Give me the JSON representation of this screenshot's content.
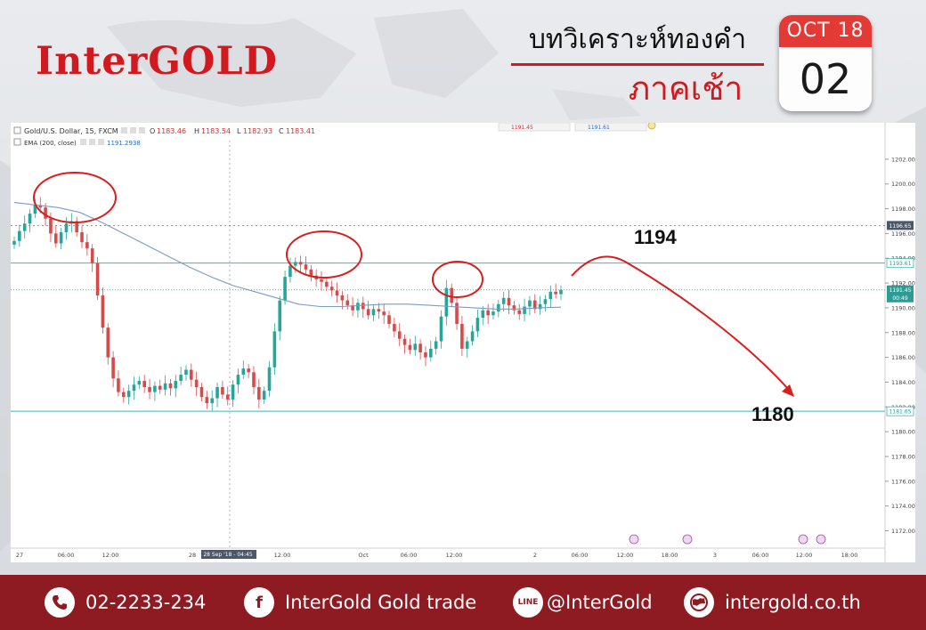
{
  "header": {
    "logo": "InterGOLD",
    "title_th": "บทวิเคราะห์ทองคำ",
    "subtitle_th": "ภาคเช้า",
    "calendar_month": "OCT 18",
    "calendar_day": "02"
  },
  "chart_header": {
    "symbol": "Gold/U.S. Dollar, 15, FXCM",
    "ohlc_o_label": "O",
    "ohlc_o": "1183.46",
    "ohlc_h_label": "H",
    "ohlc_h": "1183.54",
    "ohlc_l_label": "L",
    "ohlc_l": "1182.93",
    "ohlc_c_label": "C",
    "ohlc_c": "1183.41",
    "ema_label": "EMA (200, close)",
    "ema_value": "1191.2938",
    "tab_left": "1191.45",
    "tab_right": "1191.61"
  },
  "chart_data": {
    "type": "line",
    "title": "",
    "xlabel": "",
    "ylabel": "",
    "ylim": [
      1170.6,
      1203.5
    ],
    "yticks": [
      "1202.00",
      "1200.00",
      "1198.00",
      "1196.00",
      "1194.00",
      "1192.00",
      "1190.00",
      "1188.00",
      "1186.00",
      "1184.00",
      "1182.00",
      "1180.00",
      "1178.00",
      "1176.00",
      "1174.00",
      "1172.00"
    ],
    "xticks": [
      "27",
      "06:00",
      "12:00",
      "28",
      "28 Sep '18 - 04:45",
      "12:00",
      "Oct",
      "06:00",
      "12:00",
      "2",
      "06:00",
      "12:00",
      "18:00",
      "3",
      "06:00",
      "12:00",
      "18:00"
    ],
    "price_labels": [
      "1196.65",
      "1193.61",
      "1191.45",
      "00:49",
      "1181.65"
    ],
    "horizontal_lines": [
      1193.61,
      1191.45,
      1181.65
    ],
    "dashed_line": 1196.65,
    "series": [
      {
        "values": [
          1195.4,
          1196.2,
          1196.8,
          1197.6,
          1198.3,
          1198.1,
          1197.2,
          1196.0,
          1195.2,
          1196.1,
          1196.8,
          1197.0,
          1196.1,
          1195.3,
          1194.8,
          1193.6,
          1191.0,
          1188.4,
          1186.0,
          1184.3,
          1183.2,
          1182.8,
          1183.3,
          1183.8,
          1184.1,
          1183.6,
          1183.2,
          1183.7,
          1183.4,
          1183.9,
          1183.5,
          1184.1,
          1184.6,
          1185.0,
          1184.2,
          1183.6,
          1182.8,
          1182.3,
          1182.7,
          1183.6,
          1183.0,
          1182.6,
          1183.8,
          1184.6,
          1185.1,
          1184.8,
          1183.6,
          1182.6,
          1183.3,
          1185.2,
          1188.1,
          1190.6,
          1192.5,
          1193.4,
          1193.7,
          1193.5,
          1193.1,
          1192.6,
          1192.3,
          1192.1,
          1191.7,
          1191.4,
          1191.0,
          1190.6,
          1190.2,
          1189.8,
          1190.4,
          1189.9,
          1189.4,
          1189.9,
          1189.7,
          1189.4,
          1188.7,
          1188.1,
          1187.5,
          1187.0,
          1186.6,
          1187.1,
          1186.4,
          1186.0,
          1186.7,
          1187.3,
          1189.3,
          1191.6,
          1190.4,
          1188.7,
          1186.7,
          1187.3,
          1188.1,
          1189.2,
          1189.8,
          1189.4,
          1189.7,
          1190.3,
          1190.8,
          1190.2,
          1189.8,
          1189.5,
          1190.1,
          1190.6,
          1189.9,
          1190.3,
          1190.7,
          1191.3,
          1191.1,
          1191.45
        ]
      },
      {
        "name": "EMA (200, close)",
        "values": [
          1198.5,
          1198.3,
          1198.1,
          1197.7,
          1196.9,
          1196.0,
          1195.1,
          1194.2,
          1193.3,
          1192.5,
          1191.8,
          1191.3,
          1190.8,
          1190.3,
          1190.1,
          1190.1,
          1190.2,
          1190.3,
          1190.3,
          1190.2,
          1190.1,
          1190.0,
          1189.9,
          1189.9,
          1190.0,
          1190.05
        ]
      }
    ],
    "annotations": [
      "1194",
      "1180"
    ]
  },
  "footer": {
    "phone": "02-2233-234",
    "facebook": "InterGold Gold trade",
    "line": "@InterGold",
    "website": "intergold.co.th",
    "line_icon_text": "LINE",
    "facebook_icon_text": "f"
  }
}
